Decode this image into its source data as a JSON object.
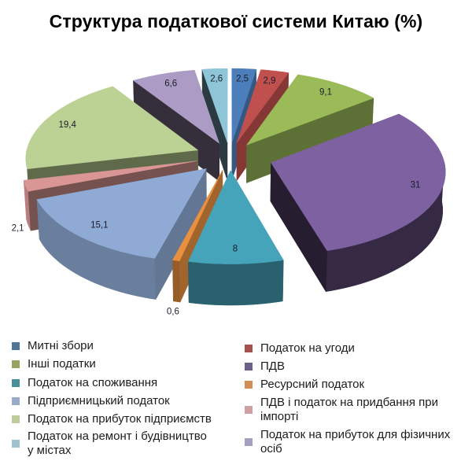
{
  "title": "Структура податкової системи Китаю (%)",
  "chart_data": {
    "type": "pie",
    "variant": "3d-exploded",
    "title": "Структура податкової системи Китаю (%)",
    "unit": "%",
    "categories": [
      "Митні збори",
      "Податок на угоди",
      "Інші податки",
      "ПДВ",
      "Податок на споживання",
      "Ресурсний податок",
      "Підприємницький податок",
      "ПДВ і податок на придбання при імпорті",
      "Податок на прибуток підприємств",
      "Податок на прибуток для фізичних осіб",
      "Податок на ремонт і будівництво у містах"
    ],
    "values": [
      2.5,
      2.9,
      9.1,
      31,
      8,
      0.6,
      15.1,
      2.1,
      19.4,
      6.6,
      2.6
    ],
    "data_labels": [
      "2,5",
      "2,9",
      "9,1",
      "31",
      "8",
      "0,6",
      "15,1",
      "2,1",
      "19,4",
      "6,6",
      "2,6"
    ],
    "colors": [
      "#4C7EBB",
      "#C0504D",
      "#9BBB59",
      "#7E61A0",
      "#45A3BA",
      "#E8903F",
      "#8FAAD4",
      "#D99694",
      "#BCD194",
      "#AC9BC5",
      "#8EC6D8"
    ],
    "start_angle_deg": 0,
    "direction": "clockwise",
    "legend": {
      "position": "bottom",
      "columns": 2
    }
  },
  "legend": {
    "items": [
      {
        "label": "Митні збори",
        "color": "#4E7597"
      },
      {
        "label": "Податок на угоди",
        "color": "#A3504F"
      },
      {
        "label": "Інші податки",
        "color": "#99A35F"
      },
      {
        "label": "ПДВ",
        "color": "#6C6086"
      },
      {
        "label": "Податок на споживання",
        "color": "#4A9098"
      },
      {
        "label": "Ресурсний податок",
        "color": "#D28F55"
      },
      {
        "label": "Підприємницький податок",
        "color": "#9AABC7"
      },
      {
        "label": "ПДВ і податок на придбання при\nімпорті",
        "color": "#CFA0A2"
      },
      {
        "label": "Податок на прибуток підприємств",
        "color": "#BECB9C"
      },
      {
        "label": "Податок на прибуток для фізичних\nосіб",
        "color": "#A69FC0"
      },
      {
        "label": "Податок на ремонт і будівництво\nу містах",
        "color": "#9EC2CE"
      }
    ]
  }
}
